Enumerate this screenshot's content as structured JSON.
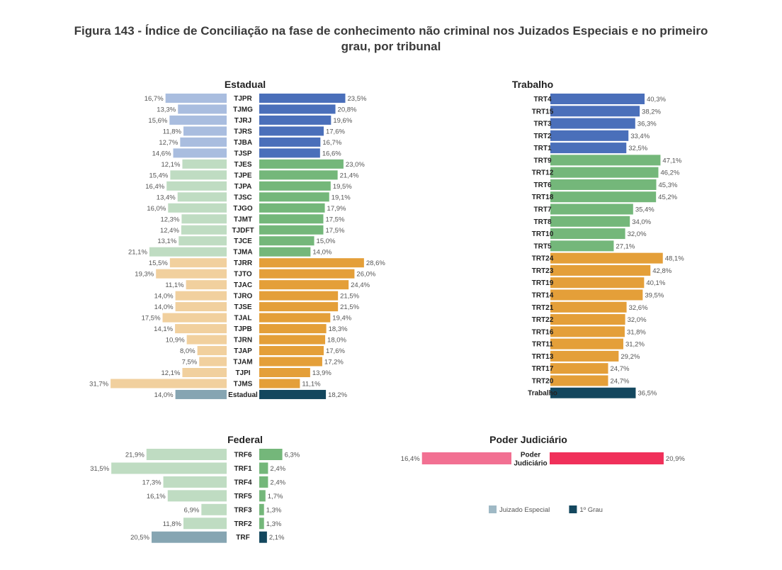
{
  "title": "Figura 143 - Índice de Conciliação na fase de conhecimento não criminal nos Juizados Especiais e no primeiro grau, por tribunal",
  "colors": {
    "blue_dark": "#4a6fba",
    "blue_light": "#a9bddf",
    "green_dark": "#74b77a",
    "green_light": "#bfdcc2",
    "orange_dark": "#e49f39",
    "orange_light": "#f1d09e",
    "total_dark": "#13475e",
    "total_light": "#86a5b2",
    "pink_light": "#f27092",
    "pink_dark": "#f0305a",
    "legend_je": "#9fb9c5",
    "legend_1g": "#13475e"
  },
  "legend": [
    {
      "label": "Juizado Especial",
      "color_key": "legend_je"
    },
    {
      "label": "1º Grau",
      "color_key": "legend_1g"
    }
  ],
  "chart_data": [
    {
      "type": "bar",
      "panel": "Estadual",
      "title": "Estadual",
      "series": [
        "Juizado Especial",
        "1º Grau"
      ],
      "rows": [
        {
          "label": "TJPR",
          "je": "16,7%",
          "g1": "23,5%",
          "je_v": 16.7,
          "g1_v": 23.5,
          "group": "blue"
        },
        {
          "label": "TJMG",
          "je": "13,3%",
          "g1": "20,8%",
          "je_v": 13.3,
          "g1_v": 20.8,
          "group": "blue"
        },
        {
          "label": "TJRJ",
          "je": "15,6%",
          "g1": "19,6%",
          "je_v": 15.6,
          "g1_v": 19.6,
          "group": "blue"
        },
        {
          "label": "TJRS",
          "je": "11,8%",
          "g1": "17,6%",
          "je_v": 11.8,
          "g1_v": 17.6,
          "group": "blue"
        },
        {
          "label": "TJBA",
          "je": "12,7%",
          "g1": "16,7%",
          "je_v": 12.7,
          "g1_v": 16.7,
          "group": "blue"
        },
        {
          "label": "TJSP",
          "je": "14,6%",
          "g1": "16,6%",
          "je_v": 14.6,
          "g1_v": 16.6,
          "group": "blue"
        },
        {
          "label": "TJES",
          "je": "12,1%",
          "g1": "23,0%",
          "je_v": 12.1,
          "g1_v": 23.0,
          "group": "green"
        },
        {
          "label": "TJPE",
          "je": "15,4%",
          "g1": "21,4%",
          "je_v": 15.4,
          "g1_v": 21.4,
          "group": "green"
        },
        {
          "label": "TJPA",
          "je": "16,4%",
          "g1": "19,5%",
          "je_v": 16.4,
          "g1_v": 19.5,
          "group": "green"
        },
        {
          "label": "TJSC",
          "je": "13,4%",
          "g1": "19,1%",
          "je_v": 13.4,
          "g1_v": 19.1,
          "group": "green"
        },
        {
          "label": "TJGO",
          "je": "16,0%",
          "g1": "17,9%",
          "je_v": 16.0,
          "g1_v": 17.9,
          "group": "green"
        },
        {
          "label": "TJMT",
          "je": "12,3%",
          "g1": "17,5%",
          "je_v": 12.3,
          "g1_v": 17.5,
          "group": "green"
        },
        {
          "label": "TJDFT",
          "je": "12,4%",
          "g1": "17,5%",
          "je_v": 12.4,
          "g1_v": 17.5,
          "group": "green"
        },
        {
          "label": "TJCE",
          "je": "13,1%",
          "g1": "15,0%",
          "je_v": 13.1,
          "g1_v": 15.0,
          "group": "green"
        },
        {
          "label": "TJMA",
          "je": "21,1%",
          "g1": "14,0%",
          "je_v": 21.1,
          "g1_v": 14.0,
          "group": "green"
        },
        {
          "label": "TJRR",
          "je": "15,5%",
          "g1": "28,6%",
          "je_v": 15.5,
          "g1_v": 28.6,
          "group": "orange"
        },
        {
          "label": "TJTO",
          "je": "19,3%",
          "g1": "26,0%",
          "je_v": 19.3,
          "g1_v": 26.0,
          "group": "orange"
        },
        {
          "label": "TJAC",
          "je": "11,1%",
          "g1": "24,4%",
          "je_v": 11.1,
          "g1_v": 24.4,
          "group": "orange"
        },
        {
          "label": "TJRO",
          "je": "14,0%",
          "g1": "21,5%",
          "je_v": 14.0,
          "g1_v": 21.5,
          "group": "orange"
        },
        {
          "label": "TJSE",
          "je": "14,0%",
          "g1": "21,5%",
          "je_v": 14.0,
          "g1_v": 21.5,
          "group": "orange"
        },
        {
          "label": "TJAL",
          "je": "17,5%",
          "g1": "19,4%",
          "je_v": 17.5,
          "g1_v": 19.4,
          "group": "orange"
        },
        {
          "label": "TJPB",
          "je": "14,1%",
          "g1": "18,3%",
          "je_v": 14.1,
          "g1_v": 18.3,
          "group": "orange"
        },
        {
          "label": "TJRN",
          "je": "10,9%",
          "g1": "18,0%",
          "je_v": 10.9,
          "g1_v": 18.0,
          "group": "orange"
        },
        {
          "label": "TJAP",
          "je": "8,0%",
          "g1": "17,6%",
          "je_v": 8.0,
          "g1_v": 17.6,
          "group": "orange"
        },
        {
          "label": "TJAM",
          "je": "7,5%",
          "g1": "17,2%",
          "je_v": 7.5,
          "g1_v": 17.2,
          "group": "orange"
        },
        {
          "label": "TJPI",
          "je": "12,1%",
          "g1": "13,9%",
          "je_v": 12.1,
          "g1_v": 13.9,
          "group": "orange"
        },
        {
          "label": "TJMS",
          "je": "31,7%",
          "g1": "11,1%",
          "je_v": 31.7,
          "g1_v": 11.1,
          "group": "orange"
        },
        {
          "label": "Estadual",
          "je": "14,0%",
          "g1": "18,2%",
          "je_v": 14.0,
          "g1_v": 18.2,
          "group": "total"
        }
      ]
    },
    {
      "type": "bar",
      "panel": "Trabalho",
      "title": "Trabalho",
      "series": [
        "1º Grau"
      ],
      "rows": [
        {
          "label": "TRT4",
          "g1": "40,3%",
          "g1_v": 40.3,
          "group": "blue"
        },
        {
          "label": "TRT15",
          "g1": "38,2%",
          "g1_v": 38.2,
          "group": "blue"
        },
        {
          "label": "TRT3",
          "g1": "36,3%",
          "g1_v": 36.3,
          "group": "blue"
        },
        {
          "label": "TRT2",
          "g1": "33,4%",
          "g1_v": 33.4,
          "group": "blue"
        },
        {
          "label": "TRT1",
          "g1": "32,5%",
          "g1_v": 32.5,
          "group": "blue"
        },
        {
          "label": "TRT9",
          "g1": "47,1%",
          "g1_v": 47.1,
          "group": "green"
        },
        {
          "label": "TRT12",
          "g1": "46,2%",
          "g1_v": 46.2,
          "group": "green"
        },
        {
          "label": "TRT6",
          "g1": "45,3%",
          "g1_v": 45.3,
          "group": "green"
        },
        {
          "label": "TRT18",
          "g1": "45,2%",
          "g1_v": 45.2,
          "group": "green"
        },
        {
          "label": "TRT7",
          "g1": "35,4%",
          "g1_v": 35.4,
          "group": "green"
        },
        {
          "label": "TRT8",
          "g1": "34,0%",
          "g1_v": 34.0,
          "group": "green"
        },
        {
          "label": "TRT10",
          "g1": "32,0%",
          "g1_v": 32.0,
          "group": "green"
        },
        {
          "label": "TRT5",
          "g1": "27,1%",
          "g1_v": 27.1,
          "group": "green"
        },
        {
          "label": "TRT24",
          "g1": "48,1%",
          "g1_v": 48.1,
          "group": "orange"
        },
        {
          "label": "TRT23",
          "g1": "42,8%",
          "g1_v": 42.8,
          "group": "orange"
        },
        {
          "label": "TRT19",
          "g1": "40,1%",
          "g1_v": 40.1,
          "group": "orange"
        },
        {
          "label": "TRT14",
          "g1": "39,5%",
          "g1_v": 39.5,
          "group": "orange"
        },
        {
          "label": "TRT21",
          "g1": "32,6%",
          "g1_v": 32.6,
          "group": "orange"
        },
        {
          "label": "TRT22",
          "g1": "32,0%",
          "g1_v": 32.0,
          "group": "orange"
        },
        {
          "label": "TRT16",
          "g1": "31,8%",
          "g1_v": 31.8,
          "group": "orange"
        },
        {
          "label": "TRT11",
          "g1": "31,2%",
          "g1_v": 31.2,
          "group": "orange"
        },
        {
          "label": "TRT13",
          "g1": "29,2%",
          "g1_v": 29.2,
          "group": "orange"
        },
        {
          "label": "TRT17",
          "g1": "24,7%",
          "g1_v": 24.7,
          "group": "orange"
        },
        {
          "label": "TRT20",
          "g1": "24,7%",
          "g1_v": 24.7,
          "group": "orange"
        },
        {
          "label": "Trabalho",
          "g1": "36,5%",
          "g1_v": 36.5,
          "group": "total"
        }
      ]
    },
    {
      "type": "bar",
      "panel": "Federal",
      "title": "Federal",
      "series": [
        "Juizado Especial",
        "1º Grau"
      ],
      "rows": [
        {
          "label": "TRF6",
          "je": "21,9%",
          "g1": "6,3%",
          "je_v": 21.9,
          "g1_v": 6.3,
          "group": "green"
        },
        {
          "label": "TRF1",
          "je": "31,5%",
          "g1": "2,4%",
          "je_v": 31.5,
          "g1_v": 2.4,
          "group": "green"
        },
        {
          "label": "TRF4",
          "je": "17,3%",
          "g1": "2,4%",
          "je_v": 17.3,
          "g1_v": 2.4,
          "group": "green"
        },
        {
          "label": "TRF5",
          "je": "16,1%",
          "g1": "1,7%",
          "je_v": 16.1,
          "g1_v": 1.7,
          "group": "green"
        },
        {
          "label": "TRF3",
          "je": "6,9%",
          "g1": "1,3%",
          "je_v": 6.9,
          "g1_v": 1.3,
          "group": "green"
        },
        {
          "label": "TRF2",
          "je": "11,8%",
          "g1": "1,3%",
          "je_v": 11.8,
          "g1_v": 1.3,
          "group": "green"
        },
        {
          "label": "TRF",
          "je": "20,5%",
          "g1": "2,1%",
          "je_v": 20.5,
          "g1_v": 2.1,
          "group": "total"
        }
      ]
    },
    {
      "type": "bar",
      "panel": "Poder",
      "title": "Poder Judiciário",
      "series": [
        "Juizado Especial",
        "1º Grau"
      ],
      "rows": [
        {
          "label": "Poder Judiciário",
          "label_lines": [
            "Poder",
            "Judiciário"
          ],
          "je": "16,4%",
          "g1": "20,9%",
          "je_v": 16.4,
          "g1_v": 20.9,
          "group": "pink"
        }
      ]
    }
  ]
}
